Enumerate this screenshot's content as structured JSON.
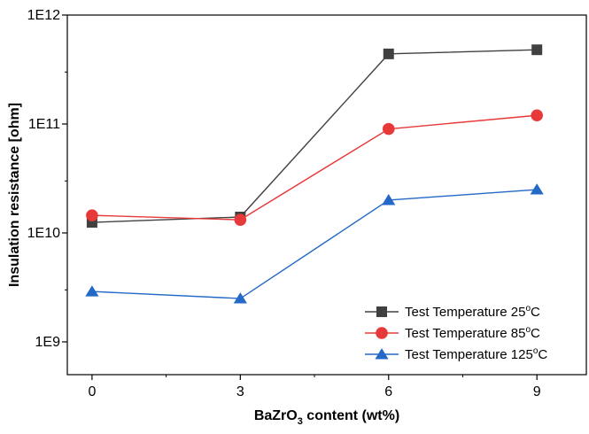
{
  "chart_data": {
    "type": "line",
    "title": "",
    "xlabel": "BaZrO3 content (wt%)",
    "xlabel_parts": {
      "pre": "BaZrO",
      "sub": "3",
      "post": " content (wt%)"
    },
    "ylabel": "Insulation resistance [ohm]",
    "x": [
      0,
      3,
      6,
      9
    ],
    "xlim": [
      -0.5,
      10.0
    ],
    "ylim": [
      500000000.0,
      1000000000000.0
    ],
    "yscale": "log",
    "x_ticks": [
      0,
      3,
      6,
      9
    ],
    "x_tick_labels": [
      "0",
      "3",
      "6",
      "9"
    ],
    "y_ticks": [
      1000000000.0,
      10000000000.0,
      100000000000.0,
      1000000000000.0
    ],
    "y_tick_labels": [
      "1E9",
      "1E10",
      "1E11",
      "1E12"
    ],
    "grid": false,
    "legend_position": "bottom-right",
    "series": [
      {
        "name": "Test Temperature 25°C",
        "label_pre": "Test Temperature 25",
        "label_sup": "o",
        "label_post": "C",
        "values": [
          12500000000.0,
          14000000000.0,
          440000000000.0,
          480000000000.0
        ],
        "color": "#404040",
        "marker": "square"
      },
      {
        "name": "Test Temperature 85°C",
        "label_pre": "Test Temperature 85",
        "label_sup": "o",
        "label_post": "C",
        "values": [
          14500000000.0,
          13200000000.0,
          90000000000.0,
          120000000000.0
        ],
        "color": "#e8393a",
        "marker": "circle"
      },
      {
        "name": "Test Temperature 125°C",
        "label_pre": "Test Temperature 125",
        "label_sup": "o",
        "label_post": "C",
        "values": [
          2900000000.0,
          2500000000.0,
          20000000000.0,
          25000000000.0
        ],
        "color": "#2468c8",
        "marker": "triangle"
      }
    ]
  }
}
